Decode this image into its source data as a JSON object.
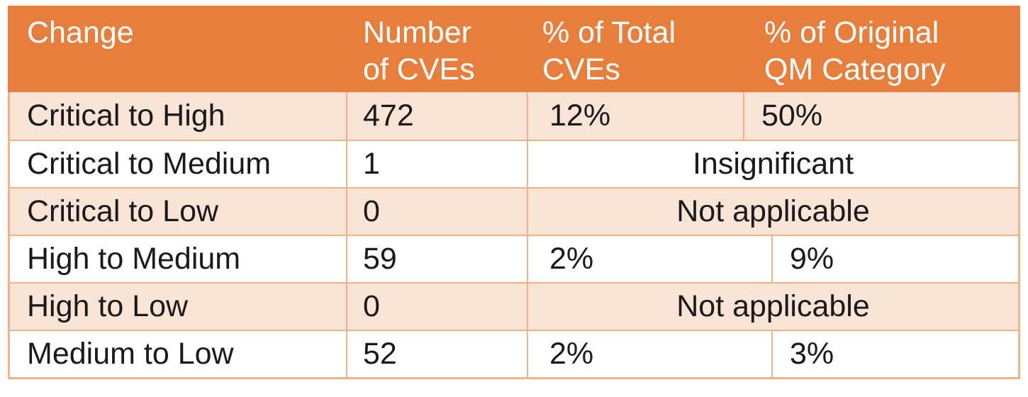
{
  "table": {
    "headers": [
      "Change",
      "Number\nof CVEs",
      "% of Total\nCVEs",
      "% of Original\nQM Category"
    ],
    "rows": [
      {
        "change": "Critical to High",
        "num_cves": "472",
        "pct_total": "12%",
        "pct_original": "50%"
      },
      {
        "change": "Critical to Medium",
        "num_cves": "1",
        "merged": "Insignificant"
      },
      {
        "change": "Critical to Low",
        "num_cves": "0",
        "merged": "Not applicable"
      },
      {
        "change": "High to Medium",
        "num_cves": "59",
        "pct_total": "2%",
        "pct_original": "9%"
      },
      {
        "change": "High to Low",
        "num_cves": "0",
        "merged": "Not applicable"
      },
      {
        "change": "Medium to Low",
        "num_cves": "52",
        "pct_total": "2%",
        "pct_original": "3%"
      }
    ],
    "colors": {
      "header_bg": "#E87E3C",
      "band_bg": "#FAE4D5",
      "border": "#F4B183",
      "header_text": "#FFFFFF",
      "body_text": "#1A1A1A"
    }
  },
  "chart_data": {
    "type": "table",
    "title": "",
    "columns": [
      "Change",
      "Number of CVEs",
      "% of Total CVEs",
      "% of Original QM Category"
    ],
    "rows": [
      [
        "Critical to High",
        "472",
        "12%",
        "50%"
      ],
      [
        "Critical to Medium",
        "1",
        "Insignificant",
        "Insignificant"
      ],
      [
        "Critical to Low",
        "0",
        "Not applicable",
        "Not applicable"
      ],
      [
        "High to Medium",
        "59",
        "2%",
        "9%"
      ],
      [
        "High to Low",
        "0",
        "Not applicable",
        "Not applicable"
      ],
      [
        "Medium to Low",
        "52",
        "2%",
        "3%"
      ]
    ]
  }
}
